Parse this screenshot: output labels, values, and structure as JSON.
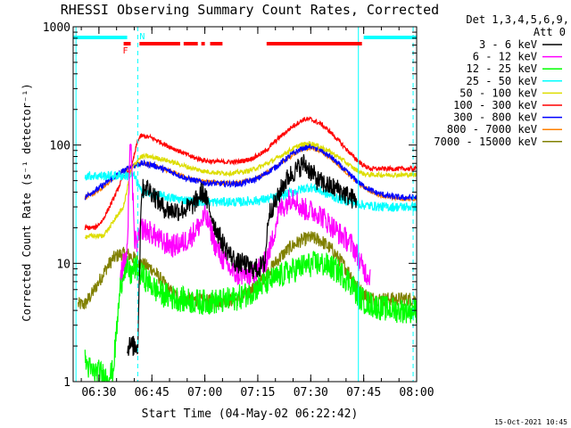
{
  "chart_data": {
    "type": "line",
    "title": "RHESSI Observing Summary Count Rates, Corrected",
    "xlabel": "Start Time (04-May-02 06:22:42)",
    "ylabel": "Corrected Count Rate (s⁻¹ detector⁻¹)",
    "y_scale": "log",
    "ylim": [
      1,
      1000
    ],
    "xlim": [
      382.7,
      480
    ],
    "x_ticks": [
      {
        "value": 390,
        "label": "06:30"
      },
      {
        "value": 405,
        "label": "06:45"
      },
      {
        "value": 420,
        "label": "07:00"
      },
      {
        "value": 435,
        "label": "07:15"
      },
      {
        "value": 450,
        "label": "07:30"
      },
      {
        "value": 465,
        "label": "07:45"
      },
      {
        "value": 480,
        "label": "08:00"
      }
    ],
    "y_ticks": [
      {
        "value": 1,
        "label": "1"
      },
      {
        "value": 10,
        "label": "10"
      },
      {
        "value": 100,
        "label": "100"
      },
      {
        "value": 1000,
        "label": "1000"
      }
    ],
    "legend": {
      "header": [
        "Det 1,3,4,5,6,9,",
        "Att 0"
      ],
      "placement": "right"
    },
    "flags": {
      "F_label": "F",
      "N_label": "N",
      "cyan_segments": [
        [
          382.7,
          398.0
        ],
        [
          465.0,
          480.0
        ]
      ],
      "red_segments": [
        [
          397.0,
          399.0
        ],
        [
          401.5,
          413.0
        ],
        [
          414.0,
          418.0
        ],
        [
          419.0,
          420.0
        ],
        [
          421.5,
          425.0
        ],
        [
          437.5,
          464.5
        ]
      ],
      "F_x": 397.5,
      "N_x": 401.0
    },
    "vlines": [
      {
        "x": 383.5,
        "color": "#00ffff",
        "style": "solid"
      },
      {
        "x": 401.0,
        "color": "#00ffff",
        "style": "dashed"
      },
      {
        "x": 463.5,
        "color": "#00ffff",
        "style": "solid"
      },
      {
        "x": 479.0,
        "color": "#00ffff",
        "style": "dashed"
      }
    ],
    "series": [
      {
        "name": "3 - 6 keV",
        "color": "#000000",
        "noise": 0.18,
        "x": [
          382.7,
          391,
          393,
          394,
          395,
          396,
          397,
          398,
          399,
          400,
          401,
          402,
          403,
          405,
          408,
          410,
          413,
          416,
          418,
          419,
          420,
          421,
          422,
          423,
          425,
          427,
          429,
          431,
          433,
          435,
          437,
          438,
          439,
          440,
          442,
          444,
          446,
          448,
          450,
          452,
          455,
          458,
          460,
          462,
          463
        ],
        "y": [
          null,
          null,
          null,
          null,
          null,
          null,
          null,
          2,
          2,
          2,
          2,
          40,
          45,
          40,
          30,
          28,
          28,
          30,
          35,
          40,
          38,
          30,
          25,
          20,
          15,
          12,
          10,
          10,
          9,
          9,
          10,
          25,
          30,
          32,
          45,
          55,
          62,
          70,
          60,
          50,
          45,
          42,
          38,
          35,
          34
        ]
      },
      {
        "name": "6 - 12 keV",
        "color": "#ff00ff",
        "noise": 0.2,
        "x": [
          382.7,
          391,
          393,
          394,
          395,
          396,
          397,
          398,
          399,
          400,
          401,
          402,
          405,
          408,
          411,
          414,
          416,
          418,
          420,
          421,
          422,
          423,
          425,
          427,
          429,
          431,
          433,
          435,
          437,
          439,
          441,
          443,
          445,
          447,
          449,
          452,
          455,
          458,
          460,
          462,
          463,
          464,
          465,
          466,
          467
        ],
        "y": [
          null,
          null,
          null,
          null,
          null,
          8,
          10,
          12,
          130,
          16,
          15,
          20,
          18,
          15,
          14,
          15,
          17,
          20,
          25,
          22,
          18,
          14,
          11,
          9,
          8,
          8,
          8,
          9,
          10,
          15,
          28,
          32,
          38,
          30,
          28,
          27,
          22,
          18,
          16,
          14,
          12,
          10,
          9,
          8,
          8
        ]
      },
      {
        "name": "12 - 25 keV",
        "color": "#00ff00",
        "noise": 0.22,
        "x": [
          382.7,
          384,
          386,
          388,
          390,
          392,
          394,
          396,
          397,
          398,
          399,
          400,
          401,
          402,
          404,
          406,
          408,
          410,
          413,
          416,
          420,
          425,
          428,
          430,
          432,
          434,
          436,
          440,
          444,
          448,
          452,
          455,
          458,
          460,
          462,
          463,
          465,
          467,
          470,
          475,
          480
        ],
        "y": [
          null,
          null,
          1.5,
          1.2,
          1.2,
          1.1,
          1.2,
          6,
          9,
          9,
          8,
          9,
          9,
          8,
          7,
          6,
          5.5,
          5.2,
          5.0,
          4.8,
          4.7,
          4.8,
          5.0,
          5.2,
          5.5,
          6.0,
          6.5,
          7.5,
          8.5,
          9.5,
          10,
          9.5,
          8.5,
          7.5,
          6.5,
          5.5,
          4.8,
          4.5,
          4.2,
          4.0,
          4.0
        ]
      },
      {
        "name": "25 - 50 keV",
        "color": "#00ffff",
        "noise": 0.08,
        "x": [
          382.7,
          386,
          390,
          394,
          396,
          398,
          400,
          402,
          406,
          410,
          415,
          420,
          425,
          430,
          435,
          440,
          445,
          448,
          450,
          452,
          455,
          458,
          462,
          465,
          470,
          475,
          480
        ],
        "y": [
          null,
          55,
          55,
          55,
          55,
          55,
          55,
          40,
          38,
          36,
          34,
          33,
          33,
          33,
          34,
          36,
          40,
          43,
          44,
          42,
          38,
          35,
          33,
          31,
          30,
          30,
          30
        ]
      },
      {
        "name": "50 - 100 keV",
        "color": "#dddd00",
        "noise": 0.04,
        "x": [
          382.7,
          386,
          388,
          389,
          391,
          393,
          395,
          397,
          399,
          401,
          402,
          404,
          408,
          412,
          416,
          420,
          424,
          428,
          432,
          436,
          440,
          444,
          447,
          450,
          453,
          456,
          459,
          462,
          465,
          467,
          470,
          475,
          480
        ],
        "y": [
          null,
          17,
          17,
          17,
          17,
          20,
          25,
          30,
          60,
          75,
          80,
          80,
          76,
          70,
          64,
          60,
          58,
          58,
          60,
          66,
          76,
          90,
          100,
          104,
          96,
          86,
          75,
          64,
          57,
          56,
          56,
          56,
          56
        ]
      },
      {
        "name": "100 - 300 keV",
        "color": "#ff0000",
        "noise": 0.04,
        "x": [
          382.7,
          386,
          388,
          389,
          391,
          393,
          395,
          397,
          399,
          401,
          402,
          405,
          409,
          413,
          417,
          421,
          425,
          429,
          433,
          437,
          441,
          445,
          448,
          450,
          453,
          456,
          459,
          462,
          465,
          467,
          470,
          475,
          480
        ],
        "y": [
          null,
          20,
          20,
          20,
          23,
          30,
          40,
          55,
          60,
          110,
          120,
          115,
          100,
          88,
          78,
          73,
          72,
          72,
          76,
          88,
          115,
          145,
          165,
          165,
          150,
          125,
          100,
          80,
          67,
          63,
          63,
          63,
          63
        ]
      },
      {
        "name": "300 - 800 keV",
        "color": "#0000ff",
        "noise": 0.05,
        "x": [
          382.7,
          386,
          388,
          390,
          392,
          394,
          396,
          398,
          400,
          402,
          405,
          410,
          415,
          420,
          425,
          430,
          435,
          440,
          445,
          448,
          450,
          453,
          456,
          460,
          464,
          468,
          472,
          476,
          480
        ],
        "y": [
          null,
          36,
          40,
          43,
          48,
          53,
          58,
          63,
          67,
          70,
          68,
          60,
          52,
          48,
          47,
          47,
          52,
          65,
          85,
          95,
          98,
          90,
          78,
          60,
          47,
          40,
          37,
          36,
          36
        ]
      },
      {
        "name": "800 - 7000 keV",
        "color": "#ff8000",
        "noise": 0.035,
        "x": [
          382.7,
          386,
          388,
          390,
          392,
          394,
          396,
          398,
          400,
          402,
          405,
          410,
          415,
          420,
          425,
          430,
          435,
          440,
          445,
          448,
          450,
          453,
          456,
          460,
          464,
          468,
          472,
          476,
          480
        ],
        "y": [
          null,
          36,
          38,
          41,
          46,
          52,
          58,
          63,
          68,
          70,
          68,
          60,
          53,
          49,
          48,
          48,
          53,
          65,
          83,
          92,
          95,
          88,
          76,
          59,
          46,
          39,
          36,
          35,
          35
        ]
      },
      {
        "name": "7000 - 15000 keV",
        "color": "#808000",
        "noise": 0.12,
        "x": [
          382.7,
          384,
          386,
          388,
          390,
          392,
          394,
          396,
          398,
          400,
          402,
          405,
          408,
          411,
          415,
          420,
          425,
          430,
          435,
          438,
          441,
          444,
          447,
          450,
          453,
          456,
          459,
          462,
          463,
          465,
          468,
          472,
          476,
          480
        ],
        "y": [
          null,
          4.5,
          4.5,
          5.5,
          7,
          9,
          11,
          12,
          12,
          11,
          10,
          9,
          7,
          5.5,
          5.0,
          4.8,
          4.8,
          5.0,
          6.5,
          8.5,
          11,
          13.5,
          15.5,
          16.5,
          15.5,
          13,
          10,
          7.5,
          6.5,
          5.5,
          5.0,
          5.0,
          5.0,
          5.0
        ]
      }
    ]
  },
  "footer": {
    "timestamp": "15-Oct-2021 10:45"
  }
}
